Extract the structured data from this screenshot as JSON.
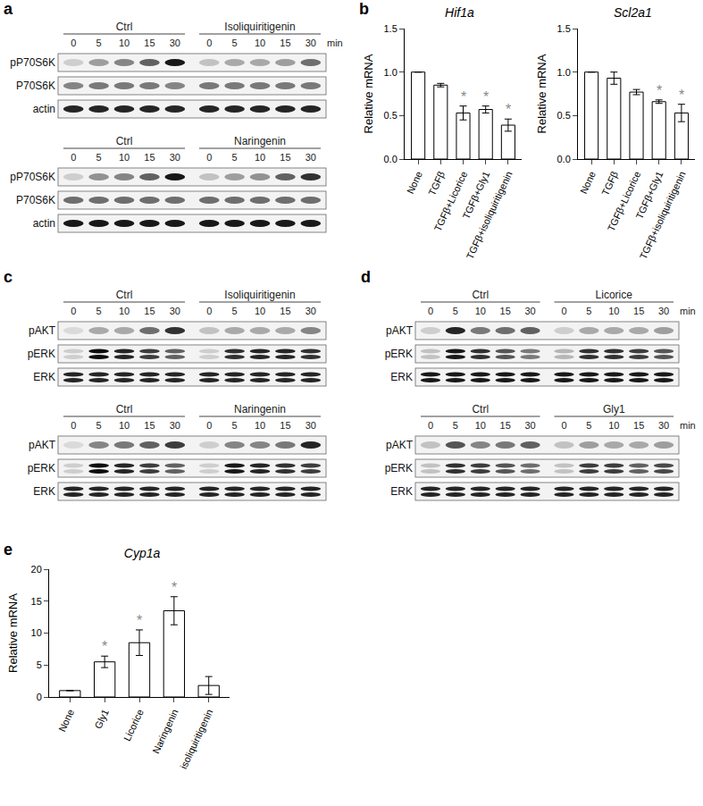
{
  "chart_data": [
    {
      "panel": "b",
      "type": "bar",
      "title": "Hif1a",
      "y_label": "Relative mRNA",
      "categories": [
        "None",
        "TGFβ",
        "TGFβ+Licorice",
        "TGFβ+Gly1",
        "TGFβ+isoliquiritigenin"
      ],
      "values": [
        1.0,
        0.85,
        0.53,
        0.57,
        0.39
      ],
      "errors": [
        0,
        0.02,
        0.08,
        0.04,
        0.07
      ],
      "significance": [
        null,
        null,
        "*",
        "*",
        "*"
      ],
      "color": "#ffffff",
      "ylim": [
        0,
        1.5
      ],
      "yticks": [
        {
          "value": 0,
          "label": "0.0"
        },
        0.5,
        {
          "value": 1,
          "label": "1.0"
        },
        1.5
      ],
      "grid": false
    },
    {
      "type": "bar",
      "title": "Scl2a1",
      "y_label": "Relative mRNA",
      "categories": [
        "None",
        "TGFβ",
        "TGFβ+Licorice",
        "TGFβ+Gly1",
        "TGFβ+isoliquiritigenin"
      ],
      "values": [
        1.0,
        0.93,
        0.77,
        0.66,
        0.53
      ],
      "errors": [
        0,
        0.07,
        0.03,
        0.02,
        0.1
      ],
      "significance": [
        null,
        null,
        null,
        "*",
        "*"
      ],
      "color": "#ffffff",
      "ylim": [
        0,
        1.5
      ],
      "yticks": [
        {
          "value": 0,
          "label": "0.0"
        },
        0.5,
        {
          "value": 1,
          "label": "1.0"
        },
        1.5
      ],
      "grid": false
    },
    {
      "panel": "e",
      "type": "bar",
      "title": "Cyp1a",
      "y_label": "Relative mRNA",
      "categories": [
        "None",
        "Gly1",
        "Licorice",
        "Naringenin",
        "isoliquiritigenin"
      ],
      "values": [
        1.0,
        5.5,
        8.5,
        13.5,
        1.8
      ],
      "errors": [
        0,
        0.9,
        2.0,
        2.2,
        1.4
      ],
      "significance": [
        null,
        "*",
        "*",
        "*",
        null
      ],
      "color": "#ffffff",
      "ylim": [
        0,
        20
      ],
      "yticks": [
        0,
        5,
        10,
        15,
        20
      ],
      "grid": false
    }
  ],
  "blot_panels": [
    {
      "panel": "a",
      "blots": [
        {
          "groups": [
            {
              "label": "Ctrl",
              "lanes": [
                0,
                5,
                10,
                15,
                30
              ]
            },
            {
              "label": "Isoliquiritigenin",
              "lanes": [
                0,
                5,
                10,
                15,
                30
              ]
            }
          ],
          "unit": "min",
          "rows": [
            {
              "name": "pP70S6K",
              "intensity": [
                0.15,
                0.35,
                0.45,
                0.6,
                0.9,
                0.2,
                0.3,
                0.3,
                0.35,
                0.55
              ]
            },
            {
              "name": "P70S6K",
              "intensity": [
                0.45,
                0.5,
                0.5,
                0.5,
                0.45,
                0.5,
                0.5,
                0.5,
                0.5,
                0.5
              ]
            },
            {
              "name": "actin",
              "intensity": [
                0.85,
                0.85,
                0.85,
                0.85,
                0.85,
                0.85,
                0.85,
                0.85,
                0.85,
                0.85
              ]
            }
          ]
        },
        {
          "groups": [
            {
              "label": "Ctrl",
              "lanes": [
                0,
                5,
                10,
                15,
                30
              ]
            },
            {
              "label": "Naringenin",
              "lanes": [
                0,
                5,
                10,
                15,
                30
              ]
            }
          ],
          "rows": [
            {
              "name": "pP70S6K",
              "intensity": [
                0.15,
                0.4,
                0.45,
                0.6,
                0.9,
                0.2,
                0.35,
                0.4,
                0.6,
                0.8
              ]
            },
            {
              "name": "P70S6K",
              "intensity": [
                0.55,
                0.55,
                0.55,
                0.55,
                0.55,
                0.55,
                0.55,
                0.55,
                0.55,
                0.55
              ]
            },
            {
              "name": "actin",
              "intensity": [
                0.9,
                0.9,
                0.9,
                0.9,
                0.9,
                0.9,
                0.9,
                0.9,
                0.9,
                0.9
              ]
            }
          ]
        }
      ]
    },
    {
      "panel": "c",
      "blots": [
        {
          "groups": [
            {
              "label": "Ctrl",
              "lanes": [
                0,
                5,
                10,
                15,
                30
              ]
            },
            {
              "label": "Isoliquiritigenin",
              "lanes": [
                0,
                5,
                10,
                15,
                30
              ]
            }
          ],
          "rows": [
            {
              "name": "pAKT",
              "intensity": [
                0.1,
                0.3,
                0.3,
                0.55,
                0.8,
                0.2,
                0.3,
                0.3,
                0.3,
                0.45
              ]
            },
            {
              "name": "pERK",
              "marker": "double",
              "intensity": [
                0.15,
                0.95,
                0.85,
                0.75,
                0.6,
                0.15,
                0.8,
                0.85,
                0.85,
                0.8
              ]
            },
            {
              "name": "ERK",
              "marker": "double",
              "intensity": [
                0.85,
                0.85,
                0.85,
                0.85,
                0.85,
                0.85,
                0.85,
                0.85,
                0.85,
                0.85
              ]
            }
          ]
        },
        {
          "groups": [
            {
              "label": "Ctrl",
              "lanes": [
                0,
                5,
                10,
                15,
                30
              ]
            },
            {
              "label": "Naringenin",
              "lanes": [
                0,
                5,
                10,
                15,
                30
              ]
            }
          ],
          "rows": [
            {
              "name": "pAKT",
              "intensity": [
                0.1,
                0.45,
                0.5,
                0.6,
                0.75,
                0.15,
                0.45,
                0.45,
                0.5,
                0.85
              ]
            },
            {
              "name": "pERK",
              "marker": "double",
              "intensity": [
                0.15,
                0.95,
                0.85,
                0.75,
                0.6,
                0.15,
                0.9,
                0.85,
                0.8,
                0.75
              ]
            },
            {
              "name": "ERK",
              "marker": "double",
              "intensity": [
                0.85,
                0.85,
                0.85,
                0.85,
                0.85,
                0.85,
                0.85,
                0.85,
                0.85,
                0.85
              ]
            }
          ]
        }
      ]
    },
    {
      "panel": "d",
      "blots": [
        {
          "groups": [
            {
              "label": "Ctrl",
              "lanes": [
                0,
                5,
                10,
                15,
                30
              ]
            },
            {
              "label": "Licorice",
              "lanes": [
                0,
                5,
                10,
                15,
                30
              ]
            }
          ],
          "unit": "min",
          "rows": [
            {
              "name": "pAKT",
              "intensity": [
                0.15,
                0.85,
                0.5,
                0.55,
                0.6,
                0.15,
                0.3,
                0.3,
                0.3,
                0.35
              ]
            },
            {
              "name": "pERK",
              "marker": "double",
              "intensity": [
                0.2,
                0.9,
                0.8,
                0.65,
                0.5,
                0.25,
                0.8,
                0.8,
                0.75,
                0.65
              ]
            },
            {
              "name": "ERK",
              "marker": "double",
              "intensity": [
                0.9,
                0.9,
                0.9,
                0.9,
                0.9,
                0.9,
                0.9,
                0.9,
                0.9,
                0.9
              ]
            }
          ]
        },
        {
          "groups": [
            {
              "label": "Ctrl",
              "lanes": [
                0,
                5,
                10,
                15,
                30
              ]
            },
            {
              "label": "Gly1",
              "lanes": [
                0,
                5,
                10,
                15,
                30
              ]
            }
          ],
          "unit": "min",
          "rows": [
            {
              "name": "pAKT",
              "intensity": [
                0.2,
                0.65,
                0.45,
                0.5,
                0.6,
                0.2,
                0.35,
                0.3,
                0.3,
                0.35
              ]
            },
            {
              "name": "pERK",
              "marker": "double",
              "intensity": [
                0.2,
                0.8,
                0.75,
                0.65,
                0.55,
                0.2,
                0.75,
                0.75,
                0.6,
                0.7
              ]
            },
            {
              "name": "ERK",
              "marker": "double",
              "intensity": [
                0.85,
                0.85,
                0.85,
                0.85,
                0.85,
                0.85,
                0.85,
                0.85,
                0.85,
                0.85
              ]
            }
          ]
        }
      ]
    }
  ]
}
